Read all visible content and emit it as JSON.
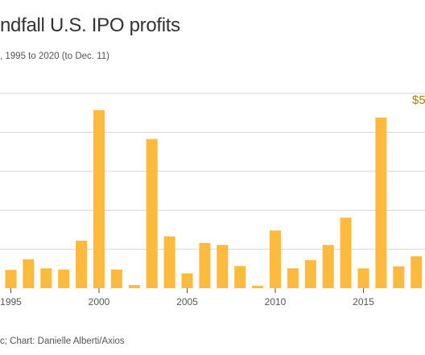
{
  "header": {
    "title": "ndfall U.S. IPO profits",
    "subtitle": ", 1995 to 2020 (to Dec. 11)"
  },
  "footer": {
    "source": "c; Chart: Danielle Alberti/Axios"
  },
  "colors": {
    "bar": "#fdba3c",
    "grid": "#d6d6d6",
    "axis_text": "#555555",
    "callout": "#a68400"
  },
  "chart_data": {
    "type": "bar",
    "title": "",
    "xlabel": "",
    "ylabel": "",
    "x": [
      1995,
      1996,
      1997,
      1998,
      1999,
      2000,
      2001,
      2002,
      2003,
      2004,
      2005,
      2006,
      2007,
      2008,
      2009,
      2010,
      2011,
      2012,
      2013,
      2014,
      2015,
      2016,
      2017,
      2018
    ],
    "values": [
      4.7,
      7.4,
      5.1,
      4.8,
      12.2,
      45.7,
      4.8,
      0.8,
      38.3,
      13.3,
      3.8,
      11.6,
      11.1,
      5.7,
      0.6,
      14.8,
      5.1,
      7.2,
      11.1,
      18.1,
      5.1,
      43.8,
      5.6,
      8.2
    ],
    "ylim": [
      0,
      50
    ],
    "grid": true,
    "grid_values": [
      10,
      20,
      30,
      40,
      50
    ],
    "x_tick_labels": [
      "1995",
      "2000",
      "2005",
      "2010",
      "2015"
    ],
    "x_tick_values": [
      1995,
      2000,
      2005,
      2010,
      2015
    ],
    "callout_text": "$5"
  }
}
